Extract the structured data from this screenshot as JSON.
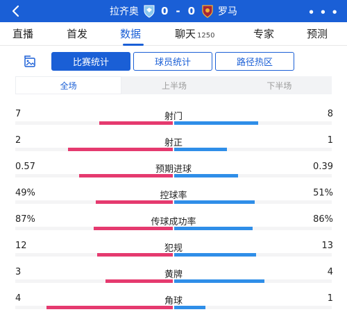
{
  "header": {
    "home_team": "拉齐奥",
    "away_team": "罗马",
    "home_score": "0",
    "separator": "-",
    "away_score": "0",
    "more_label": "• • •",
    "bg_color": "#1a5fd6"
  },
  "tabs": [
    {
      "label": "直播"
    },
    {
      "label": "首发"
    },
    {
      "label": "数据"
    },
    {
      "label": "聊天",
      "count": "1250"
    },
    {
      "label": "专家"
    },
    {
      "label": "预测"
    }
  ],
  "active_tab": "数据",
  "segments": [
    "比赛统计",
    "球员统计",
    "路径热区"
  ],
  "periods": [
    "全场",
    "上半场",
    "下半场"
  ],
  "colors": {
    "home": "#e53a6f",
    "away": "#2f8ee8",
    "accent": "#1a5fd6"
  },
  "stats": [
    {
      "label": "射门",
      "home": "7",
      "away": "8",
      "home_value": 7,
      "away_value": 8
    },
    {
      "label": "射正",
      "home": "2",
      "away": "1",
      "home_value": 2,
      "away_value": 1
    },
    {
      "label": "预期进球",
      "home": "0.57",
      "away": "0.39",
      "home_value": 0.57,
      "away_value": 0.39
    },
    {
      "label": "控球率",
      "home": "49%",
      "away": "51%",
      "home_value": 49,
      "away_value": 51
    },
    {
      "label": "传球成功率",
      "home": "87%",
      "away": "86%",
      "home_value": 87,
      "away_value": 86
    },
    {
      "label": "犯规",
      "home": "12",
      "away": "13",
      "home_value": 12,
      "away_value": 13
    },
    {
      "label": "黄牌",
      "home": "3",
      "away": "4",
      "home_value": 3,
      "away_value": 4
    },
    {
      "label": "角球",
      "home": "4",
      "away": "1",
      "home_value": 4,
      "away_value": 1
    }
  ]
}
